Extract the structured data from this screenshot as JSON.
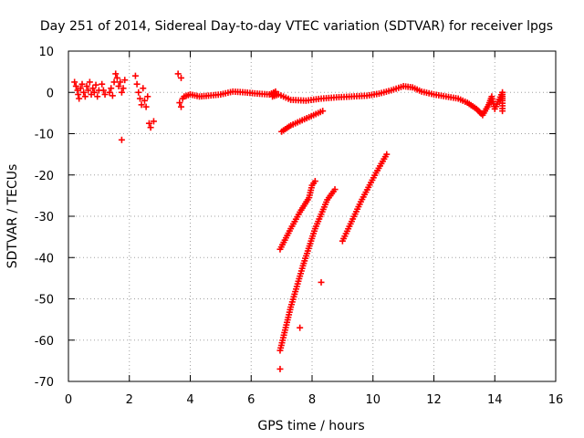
{
  "chart_data": {
    "type": "scatter",
    "title": "Day 251 of 2014, Sidereal Day-to-day VTEC variation (SDTVAR) for receiver lpgs",
    "xlabel": "GPS time / hours",
    "ylabel": "SDTVAR / TECUs",
    "xlim": [
      0,
      16
    ],
    "ylim": [
      -70,
      10
    ],
    "xticks": [
      0,
      2,
      4,
      6,
      8,
      10,
      12,
      14,
      16
    ],
    "yticks": [
      10,
      0,
      -10,
      -20,
      -30,
      -40,
      -50,
      -60,
      -70
    ],
    "grid": true,
    "marker": "plus",
    "color": "#ff0000",
    "series": [
      {
        "name": "early scattered points",
        "points": [
          [
            0.2,
            2.5
          ],
          [
            0.25,
            1.5
          ],
          [
            0.3,
            0.5
          ],
          [
            0.32,
            -0.5
          ],
          [
            0.35,
            -1.5
          ],
          [
            0.4,
            1.0
          ],
          [
            0.45,
            2.0
          ],
          [
            0.5,
            0.0
          ],
          [
            0.55,
            -1.0
          ],
          [
            0.6,
            1.5
          ],
          [
            0.65,
            0.5
          ],
          [
            0.7,
            2.5
          ],
          [
            0.75,
            -0.5
          ],
          [
            0.8,
            1.0
          ],
          [
            0.85,
            0.0
          ],
          [
            0.9,
            1.8
          ],
          [
            0.95,
            -1.0
          ],
          [
            1.0,
            0.5
          ],
          [
            1.1,
            2.0
          ],
          [
            1.15,
            0.5
          ],
          [
            1.2,
            -0.5
          ],
          [
            1.35,
            0.0
          ],
          [
            1.4,
            1.0
          ],
          [
            1.45,
            -0.8
          ],
          [
            1.5,
            2.5
          ],
          [
            1.55,
            4.5
          ],
          [
            1.6,
            3.5
          ],
          [
            1.65,
            1.5
          ],
          [
            1.7,
            2.5
          ],
          [
            1.75,
            0.0
          ],
          [
            1.8,
            1.0
          ],
          [
            1.85,
            3.0
          ],
          [
            1.75,
            -11.5
          ],
          [
            2.2,
            4.0
          ],
          [
            2.25,
            2.0
          ],
          [
            2.3,
            0.0
          ],
          [
            2.35,
            -1.5
          ],
          [
            2.4,
            -3.0
          ],
          [
            2.45,
            1.0
          ],
          [
            2.5,
            -2.0
          ],
          [
            2.55,
            -3.5
          ],
          [
            2.6,
            -1.0
          ],
          [
            2.65,
            -7.5
          ],
          [
            2.7,
            -8.5
          ],
          [
            2.8,
            -7.0
          ],
          [
            3.6,
            4.5
          ],
          [
            3.7,
            3.5
          ],
          [
            3.65,
            -2.5
          ],
          [
            3.7,
            -3.5
          ],
          [
            3.75,
            -1.5
          ]
        ]
      },
      {
        "name": "main near-zero trace",
        "points": [
          [
            3.8,
            -1.0
          ],
          [
            4.0,
            -0.5
          ],
          [
            4.3,
            -1.0
          ],
          [
            4.6,
            -0.8
          ],
          [
            5.0,
            -0.5
          ],
          [
            5.4,
            0.2
          ],
          [
            5.8,
            0.0
          ],
          [
            6.2,
            -0.3
          ],
          [
            6.6,
            -0.5
          ],
          [
            6.8,
            0.2
          ],
          [
            6.7,
            -1.0
          ],
          [
            6.9,
            -0.5
          ],
          [
            7.3,
            -1.8
          ],
          [
            7.8,
            -2.0
          ],
          [
            8.3,
            -1.5
          ],
          [
            8.8,
            -1.2
          ],
          [
            9.3,
            -1.0
          ],
          [
            9.8,
            -0.8
          ],
          [
            10.2,
            -0.3
          ],
          [
            10.6,
            0.5
          ],
          [
            11.0,
            1.5
          ],
          [
            11.3,
            1.2
          ],
          [
            11.6,
            0.2
          ],
          [
            12.0,
            -0.5
          ],
          [
            12.4,
            -1.0
          ],
          [
            12.8,
            -1.5
          ],
          [
            13.1,
            -2.5
          ],
          [
            13.4,
            -4.0
          ],
          [
            13.6,
            -5.5
          ],
          [
            13.8,
            -3.0
          ],
          [
            13.9,
            -1.0
          ],
          [
            14.0,
            -4.0
          ],
          [
            14.25,
            0.0
          ],
          [
            14.25,
            -2.0
          ],
          [
            14.25,
            -4.5
          ]
        ]
      },
      {
        "name": "descending arc",
        "points": [
          [
            7.0,
            -9.5
          ],
          [
            7.3,
            -8.0
          ],
          [
            7.6,
            -7.0
          ],
          [
            7.9,
            -6.0
          ],
          [
            8.2,
            -5.0
          ],
          [
            8.35,
            -4.5
          ]
        ]
      },
      {
        "name": "steep track 1",
        "points": [
          [
            6.95,
            -38.0
          ],
          [
            7.3,
            -33.0
          ],
          [
            7.6,
            -29.0
          ],
          [
            7.9,
            -25.5
          ],
          [
            8.0,
            -22.5
          ],
          [
            8.1,
            -21.5
          ]
        ]
      },
      {
        "name": "steep track 2",
        "points": [
          [
            6.95,
            -62.5
          ],
          [
            7.3,
            -52.0
          ],
          [
            7.7,
            -42.0
          ],
          [
            8.1,
            -33.0
          ],
          [
            8.5,
            -26.0
          ],
          [
            8.75,
            -23.5
          ]
        ]
      },
      {
        "name": "steep track 3",
        "points": [
          [
            6.95,
            -67.0
          ],
          [
            7.6,
            -57.0
          ],
          [
            8.3,
            -46.0
          ],
          [
            9.0,
            -36.0
          ],
          [
            9.6,
            -26.5
          ],
          [
            10.1,
            -19.5
          ],
          [
            10.45,
            -15.0
          ]
        ]
      }
    ]
  }
}
